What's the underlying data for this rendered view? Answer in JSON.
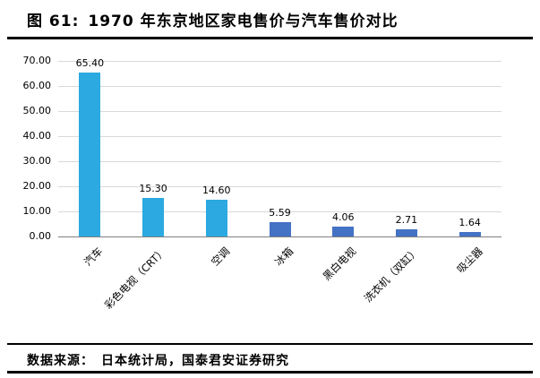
{
  "header": {
    "figure_label": "图 61:",
    "title": "1970 年东京地区家电售价与汽车售价对比"
  },
  "chart_data": {
    "type": "bar",
    "categories": [
      "汽车",
      "彩色电视（CRT）",
      "空调",
      "冰箱",
      "黑白电视",
      "洗衣机（双缸）",
      "吸尘器"
    ],
    "values": [
      65.4,
      15.3,
      14.6,
      5.59,
      4.06,
      2.71,
      1.64
    ],
    "value_labels": [
      "65.40",
      "15.30",
      "14.60",
      "5.59",
      "4.06",
      "2.71",
      "1.64"
    ],
    "title": "1970 年东京地区家电售价与汽车售价对比",
    "xlabel": "",
    "ylabel": "",
    "ylim": [
      0,
      70
    ],
    "ytick_step": 10,
    "ytick_labels": [
      "0.00",
      "10.00",
      "20.00",
      "30.00",
      "40.00",
      "50.00",
      "60.00",
      "70.00"
    ],
    "grid": true,
    "legend": "none",
    "bar_colors": [
      "#2BA9E0",
      "#2BA9E0",
      "#2BA9E0",
      "#4472C4",
      "#4472C4",
      "#4472C4",
      "#4472C4"
    ]
  },
  "footer": {
    "source": "数据来源：　日本统计局，国泰君安证券研究"
  },
  "colors": {
    "bar_light": "#2BA9E0",
    "bar_dark": "#4472C4",
    "gridline": "#D9D9D9",
    "axis": "#808080",
    "rule": "#000000"
  }
}
